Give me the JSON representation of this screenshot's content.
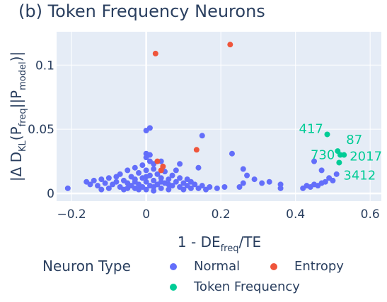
{
  "chart_data": {
    "type": "scatter",
    "title": "(b) Token Frequency Neurons",
    "xlabel": {
      "main": "1 - DE",
      "sub": "freq",
      "tail": "/TE"
    },
    "ylabel": {
      "prefix": "|Δ D",
      "sub1": "KL",
      "mid1": "(P",
      "sub2": "freq",
      "mid2": "||P",
      "sub3": "model",
      "tail": ")|"
    },
    "xlim": [
      -0.24,
      0.63
    ],
    "ylim": [
      -0.006,
      0.126
    ],
    "xticks": [
      -0.2,
      0,
      0.2,
      0.4,
      0.6
    ],
    "xtick_labels": [
      "−0.2",
      "0",
      "0.2",
      "0.4",
      "0.6"
    ],
    "yticks": [
      0,
      0.05,
      0.1
    ],
    "ytick_labels": [
      "0",
      "0.05",
      "0.1"
    ],
    "grid": true,
    "legend": {
      "title": "Neuron Type",
      "placement": "bottom",
      "entries": [
        "Normal",
        "Entropy",
        "Token Frequency"
      ]
    },
    "series": [
      {
        "name": "Normal",
        "color": "#636efa",
        "points": [
          [
            -0.21,
            0.004
          ],
          [
            -0.16,
            0.009
          ],
          [
            -0.15,
            0.007
          ],
          [
            -0.14,
            0.01
          ],
          [
            -0.13,
            0.006
          ],
          [
            -0.12,
            0.011
          ],
          [
            -0.12,
            0.003
          ],
          [
            -0.11,
            0.008
          ],
          [
            -0.1,
            0.012
          ],
          [
            -0.1,
            0.004
          ],
          [
            -0.09,
            0.007
          ],
          [
            -0.08,
            0.013
          ],
          [
            -0.08,
            0.009
          ],
          [
            -0.07,
            0.005
          ],
          [
            -0.07,
            0.015
          ],
          [
            -0.06,
            0.01
          ],
          [
            -0.06,
            0.003
          ],
          [
            -0.05,
            0.018
          ],
          [
            -0.05,
            0.008
          ],
          [
            -0.04,
            0.006
          ],
          [
            -0.04,
            0.013
          ],
          [
            -0.03,
            0.02
          ],
          [
            -0.03,
            0.004
          ],
          [
            -0.03,
            0.011
          ],
          [
            -0.02,
            0.016
          ],
          [
            -0.02,
            0.007
          ],
          [
            -0.02,
            0.003
          ],
          [
            -0.01,
            0.022
          ],
          [
            -0.01,
            0.012
          ],
          [
            -0.01,
            0.005
          ],
          [
            0.0,
            0.018
          ],
          [
            0.0,
            0.009
          ],
          [
            0.0,
            0.003
          ],
          [
            0.01,
            0.025
          ],
          [
            0.01,
            0.014
          ],
          [
            0.01,
            0.006
          ],
          [
            0.02,
            0.019
          ],
          [
            0.02,
            0.01
          ],
          [
            0.02,
            0.002
          ],
          [
            0.03,
            0.015
          ],
          [
            0.03,
            0.007
          ],
          [
            0.04,
            0.012
          ],
          [
            0.04,
            0.004
          ],
          [
            0.05,
            0.017
          ],
          [
            0.05,
            0.008
          ],
          [
            0.06,
            0.011
          ],
          [
            0.06,
            0.003
          ],
          [
            0.07,
            0.014
          ],
          [
            0.07,
            0.006
          ],
          [
            0.08,
            0.009
          ],
          [
            0.08,
            0.018
          ],
          [
            0.09,
            0.005
          ],
          [
            0.09,
            0.012
          ],
          [
            0.1,
            0.008
          ],
          [
            0.1,
            0.003
          ],
          [
            0.11,
            0.011
          ],
          [
            0.11,
            0.006
          ],
          [
            0.12,
            0.004
          ],
          [
            0.12,
            0.009
          ],
          [
            0.13,
            0.007
          ],
          [
            0.14,
            0.004
          ],
          [
            0.15,
            0.006
          ],
          [
            0.16,
            0.003
          ],
          [
            0.17,
            0.005
          ],
          [
            0.19,
            0.004
          ],
          [
            0.21,
            0.005
          ],
          [
            -0.03,
            0.009
          ],
          [
            0.0,
            0.013
          ],
          [
            0.02,
            0.005
          ],
          [
            0.04,
            0.009
          ],
          [
            0.06,
            0.007
          ],
          [
            -0.05,
            0.004
          ],
          [
            0.0,
            0.049
          ],
          [
            0.01,
            0.051
          ],
          [
            0.0,
            0.031
          ],
          [
            0.01,
            0.03
          ],
          [
            0.0,
            0.028
          ],
          [
            0.02,
            0.023
          ],
          [
            0.04,
            0.025
          ],
          [
            0.09,
            0.023
          ],
          [
            0.15,
            0.045
          ],
          [
            0.14,
            0.02
          ],
          [
            0.23,
            0.031
          ],
          [
            0.26,
            0.019
          ],
          [
            0.27,
            0.014
          ],
          [
            0.29,
            0.011
          ],
          [
            0.31,
            0.008
          ],
          [
            0.33,
            0.009
          ],
          [
            0.36,
            0.007
          ],
          [
            0.26,
            0.008
          ],
          [
            0.25,
            0.005
          ],
          [
            0.36,
            0.004
          ],
          [
            0.42,
            0.004
          ],
          [
            0.43,
            0.006
          ],
          [
            0.44,
            0.005
          ],
          [
            0.45,
            0.007
          ],
          [
            0.46,
            0.006
          ],
          [
            0.47,
            0.008
          ],
          [
            0.48,
            0.009
          ],
          [
            0.49,
            0.012
          ],
          [
            0.5,
            0.01
          ],
          [
            0.47,
            0.018
          ],
          [
            0.45,
            0.025
          ],
          [
            0.51,
            0.015
          ]
        ]
      },
      {
        "name": "Entropy",
        "color": "#ef553b",
        "points": [
          [
            0.025,
            0.109
          ],
          [
            0.225,
            0.116
          ],
          [
            0.135,
            0.034
          ],
          [
            0.03,
            0.025
          ],
          [
            0.045,
            0.021
          ],
          [
            0.04,
            0.018
          ]
        ]
      },
      {
        "name": "Token Frequency",
        "color": "#00cc96",
        "points": [
          [
            0.485,
            0.046
          ],
          [
            0.513,
            0.033
          ],
          [
            0.52,
            0.03
          ],
          [
            0.53,
            0.03
          ],
          [
            0.517,
            0.024
          ]
        ],
        "labels": [
          "417",
          "87",
          "730",
          "2017",
          "3412"
        ]
      }
    ]
  }
}
